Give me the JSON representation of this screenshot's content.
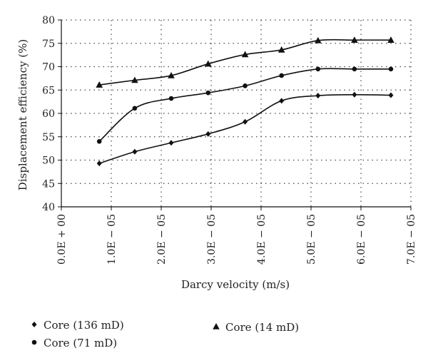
{
  "chart_data": {
    "type": "scatter",
    "xlabel": "Darcy velocity (m/s)",
    "ylabel": "Displacement efficiency (%)",
    "xlim": [
      0,
      7e-05
    ],
    "ylim": [
      40,
      80
    ],
    "x_tick_labels": [
      "0.0E + 00",
      "1.0E − 05",
      "2.0E − 05",
      "3.0E − 05",
      "4.0E − 05",
      "5.0E − 05",
      "6.0E − 05",
      "7.0E − 05"
    ],
    "y_tick_labels": [
      "40",
      "45",
      "50",
      "55",
      "60",
      "65",
      "70",
      "75",
      "80"
    ],
    "grid": true,
    "legend_position": "bottom",
    "series": [
      {
        "name": "Core (136 mD)",
        "marker": "diamond",
        "x": [
          7.6e-06,
          1.47e-05,
          2.2e-05,
          2.94e-05,
          3.68e-05,
          4.41e-05,
          5.14e-05,
          5.87e-05,
          6.6e-05
        ],
        "y": [
          49.3,
          51.8,
          53.7,
          55.6,
          58.2,
          62.7,
          63.8,
          64.0,
          63.9
        ]
      },
      {
        "name": "Core (71 mD)",
        "marker": "circle",
        "x": [
          7.6e-06,
          1.47e-05,
          2.2e-05,
          2.94e-05,
          3.68e-05,
          4.41e-05,
          5.14e-05,
          5.87e-05,
          6.6e-05
        ],
        "y": [
          54.0,
          61.1,
          63.2,
          64.4,
          65.9,
          68.1,
          69.5,
          69.5,
          69.5
        ]
      },
      {
        "name": "Core (14 mD)",
        "marker": "triangle",
        "x": [
          7.6e-06,
          1.47e-05,
          2.2e-05,
          2.94e-05,
          3.68e-05,
          4.41e-05,
          5.14e-05,
          5.87e-05,
          6.6e-05
        ],
        "y": [
          66.1,
          67.1,
          68.1,
          70.6,
          72.6,
          73.6,
          75.6,
          75.7,
          75.7
        ]
      }
    ],
    "colors": {
      "marks": "#111111",
      "grid": "#444444",
      "axis": "#111111"
    }
  }
}
